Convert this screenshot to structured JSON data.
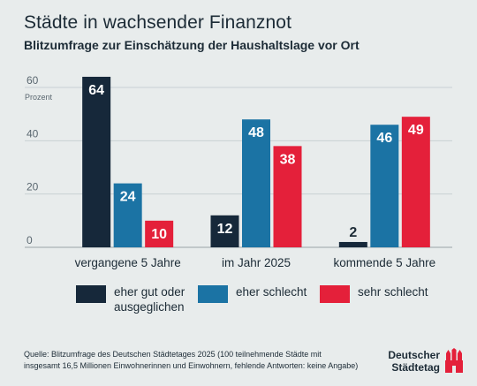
{
  "title": "Städte in wachsender Finanznot",
  "subtitle": "Blitzumfrage zur Einschätzung der Haushaltslage vor Ort",
  "chart_data": {
    "type": "bar",
    "ylabel": "Prozent",
    "ylim": [
      0,
      60
    ],
    "yticks": [
      0,
      20,
      40,
      60
    ],
    "grid": true,
    "categories": [
      "vergangene 5 Jahre",
      "im Jahr 2025",
      "kommende 5 Jahre"
    ],
    "series": [
      {
        "name": "eher gut oder ausgeglichen",
        "values": [
          64,
          12,
          2
        ],
        "color": "#16283a"
      },
      {
        "name": "eher schlecht",
        "values": [
          24,
          48,
          46
        ],
        "color": "#1b73a4"
      },
      {
        "name": "sehr schlecht",
        "values": [
          10,
          38,
          49
        ],
        "color": "#e4203a"
      }
    ]
  },
  "legend": [
    {
      "label": "eher gut oder ausgeglichen",
      "line1": "eher gut oder",
      "line2": "ausgeglichen",
      "color": "#16283a"
    },
    {
      "label": "eher schlecht",
      "color": "#1b73a4"
    },
    {
      "label": "sehr schlecht",
      "color": "#e4203a"
    }
  ],
  "source": "Quelle: Blitzumfrage des Deutschen Städtetages 2025 (100 teilnehmende Städte mit insgesamt 16,5 Millionen Einwohnerinnen und Einwohnern, fehlende Antworten: keine Angabe)",
  "logo": {
    "line1": "Deutscher",
    "line2": "Städtetag",
    "icon": "city-crest-icon",
    "color": "#e4203a"
  }
}
